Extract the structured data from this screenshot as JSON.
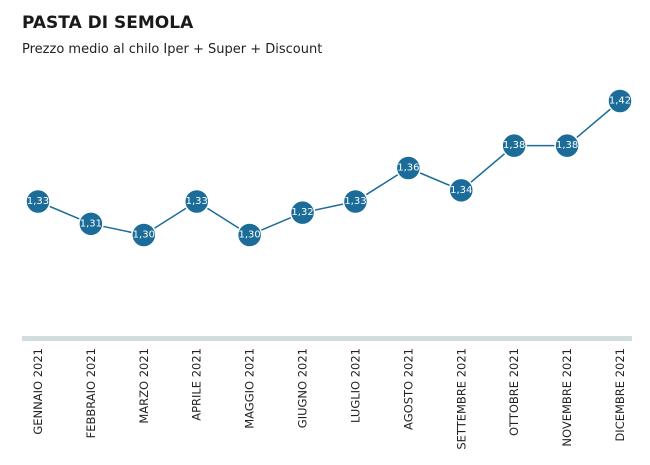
{
  "chart_data": {
    "type": "line",
    "title": "PASTA DI SEMOLA",
    "subtitle": "Prezzo medio al chilo Iper + Super + Discount",
    "categories": [
      "GENNAIO 2021",
      "FEBBRAIO 2021",
      "MARZO 2021",
      "APRILE 2021",
      "MAGGIO 2021",
      "GIUGNO 2021",
      "LUGLIO 2021",
      "AGOSTO 2021",
      "SETTEMBRE 2021",
      "OTTOBRE 2021",
      "NOVEMBRE 2021",
      "DICEMBRE 2021"
    ],
    "values": [
      1.33,
      1.31,
      1.3,
      1.33,
      1.3,
      1.32,
      1.33,
      1.36,
      1.34,
      1.38,
      1.38,
      1.42
    ],
    "value_labels": [
      "1,33",
      "1,31",
      "1,30",
      "1,33",
      "1,30",
      "1,32",
      "1,33",
      "1,36",
      "1,34",
      "1,38",
      "1,38",
      "1,42"
    ],
    "color": "#1b6c98"
  }
}
